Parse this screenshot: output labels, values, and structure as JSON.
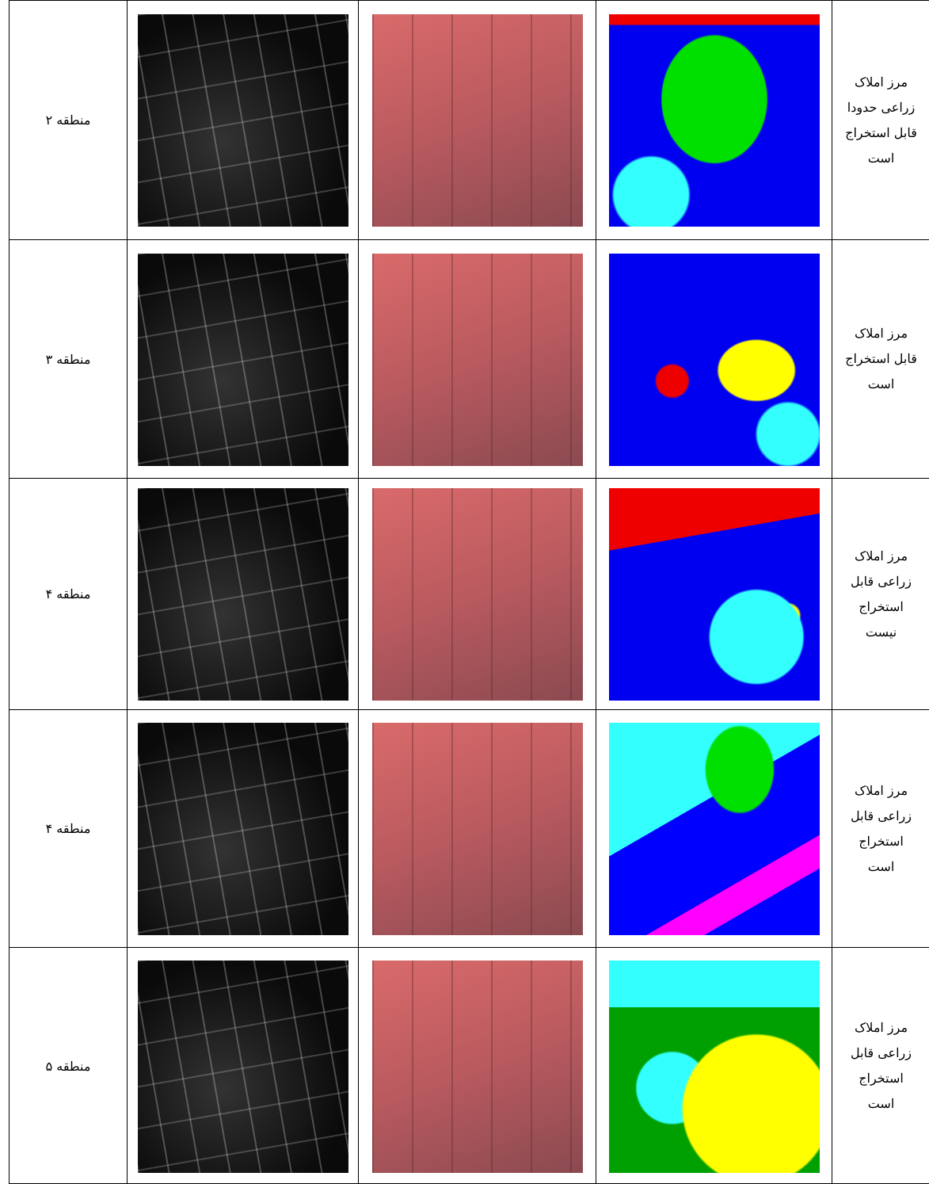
{
  "table": {
    "rows": [
      {
        "region": "منطقه ۲",
        "description": [
          "مرز املاک",
          "زراعی حدودا",
          "قابل استخراج",
          "است"
        ]
      },
      {
        "region": "منطقه ۳",
        "description": [
          "مرز املاک",
          "قابل استخراج",
          "است"
        ]
      },
      {
        "region": "منطقه ۴",
        "description": [
          "مرز املاک",
          "زراعی قابل",
          "استخراج",
          "نیست"
        ]
      },
      {
        "region": "منطقه ۴",
        "description": [
          "مرز املاک",
          "زراعی قابل",
          "استخراج",
          "است"
        ]
      },
      {
        "region": "منطقه ۵",
        "description": [
          "مرز املاک",
          "زراعی قابل",
          "استخراج",
          "است"
        ]
      }
    ]
  }
}
